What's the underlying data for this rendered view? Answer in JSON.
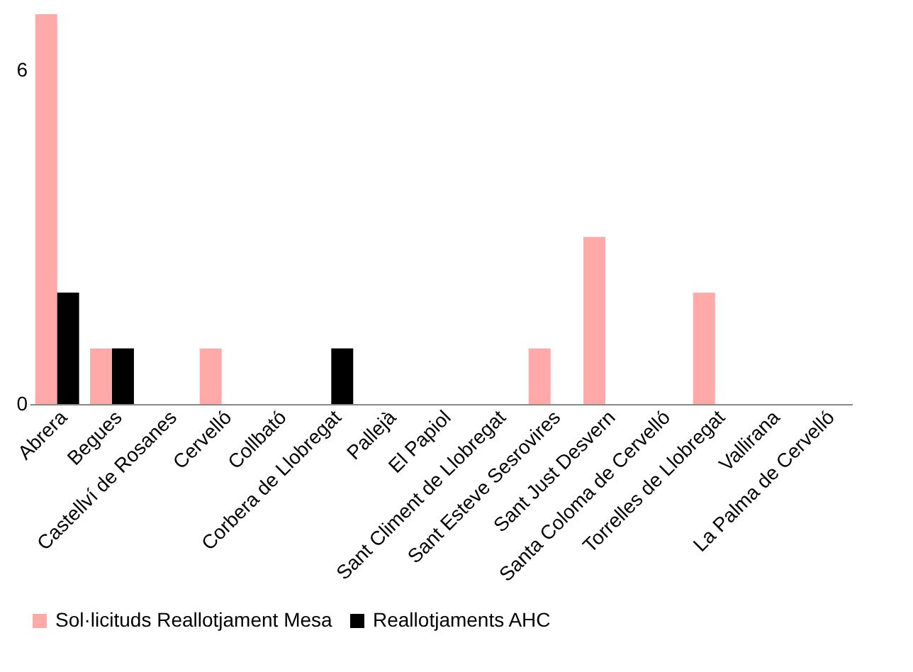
{
  "chart_data": {
    "type": "bar",
    "categories": [
      "Abrera",
      "Begues",
      "Castellví de Rosanes",
      "Cervelló",
      "Collbató",
      "Corbera de Llobregat",
      "Pallejà",
      "El Papiol",
      "Sant Climent de Llobregat",
      "Sant Esteve Sesrovires",
      "Sant Just Desvern",
      "Santa Coloma de Cervelló",
      "Torrelles de Llobregat",
      "Vallirana",
      "La Palma de Cervelló"
    ],
    "series": [
      {
        "name": "Sol·licituds Reallotjament Mesa",
        "color": "#ffa9a9",
        "values": [
          7,
          1,
          0,
          1,
          0,
          0,
          0,
          0,
          0,
          1,
          3,
          0,
          2,
          0,
          0
        ]
      },
      {
        "name": "Reallotjaments AHC",
        "color": "#000000",
        "values": [
          2,
          1,
          0,
          0,
          0,
          1,
          0,
          0,
          0,
          0,
          0,
          0,
          0,
          0,
          0
        ]
      }
    ],
    "ylim": [
      0,
      7
    ],
    "yticks": [
      0,
      6
    ],
    "grid": false,
    "legend": "bottom"
  }
}
